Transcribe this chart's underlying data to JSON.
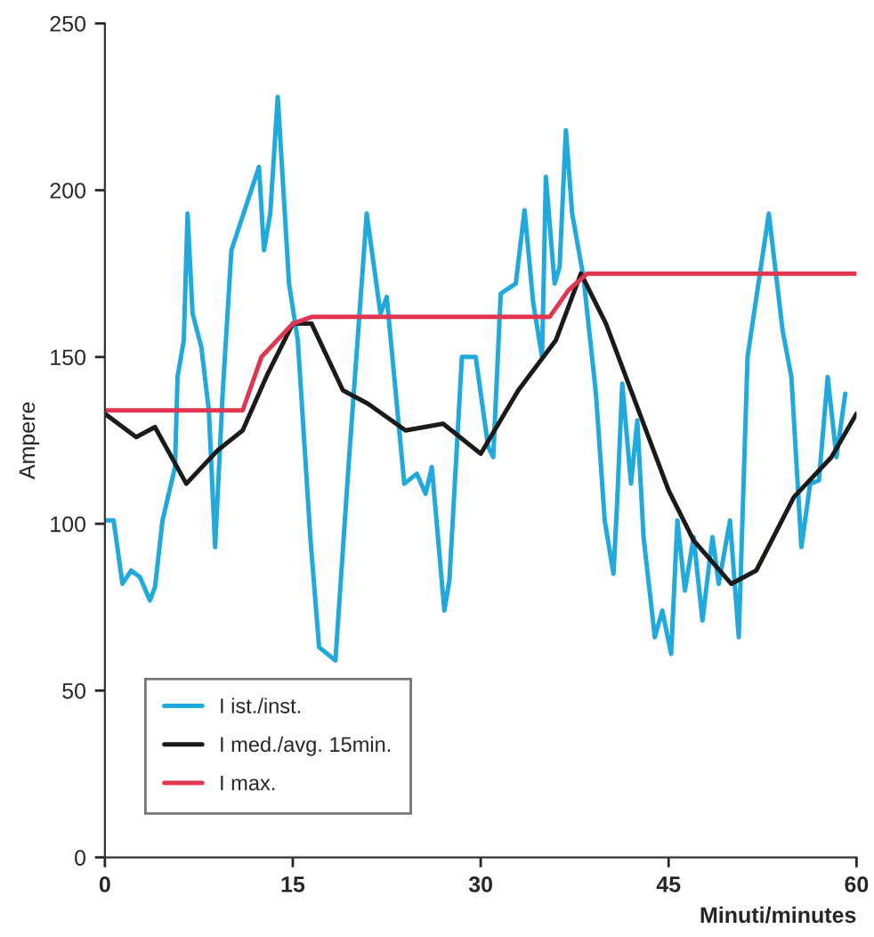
{
  "chart_data": {
    "type": "line",
    "xlabel": "Minuti/minutes",
    "ylabel": "Ampere",
    "xlim": [
      0,
      60
    ],
    "xticks": [
      0,
      15,
      30,
      45,
      60
    ],
    "ylim": [
      0,
      250
    ],
    "yticks": [
      0,
      50,
      100,
      150,
      200,
      250
    ],
    "grid": false,
    "legend": "bottom left",
    "marker": "none",
    "line_style": "solid",
    "series": [
      {
        "name": "I ist./inst.",
        "color": "#1fa9dc",
        "x": [
          0,
          0.7,
          1.4,
          2.1,
          2.8,
          3.6,
          4,
          4.6,
          5.1,
          5.6,
          5.8,
          6.3,
          6.6,
          7,
          7.7,
          8.3,
          8.8,
          9.4,
          10.1,
          12.3,
          12.7,
          13.2,
          13.8,
          14.7,
          15.4,
          16.4,
          17.1,
          18.4,
          19.5,
          20.9,
          22,
          22.5,
          23.5,
          23.9,
          24.9,
          25.6,
          26.1,
          27.1,
          27.5,
          28.5,
          29.6,
          30.6,
          31,
          31.6,
          32.8,
          33.5,
          34.2,
          34.9,
          35.2,
          35.9,
          36.3,
          36.8,
          37.3,
          38.2,
          39.2,
          39.9,
          40.6,
          40.9,
          41.3,
          42,
          42.5,
          43,
          43.9,
          44.5,
          45.2,
          45.7,
          46.3,
          47,
          47.7,
          48.5,
          49,
          49.9,
          50.6,
          51.3,
          53,
          54.1,
          54.8,
          55.6,
          56.3,
          57,
          57.7,
          58.4,
          59.1
        ],
        "values": [
          101,
          101,
          82,
          86,
          84,
          77,
          81,
          101,
          109,
          117,
          144,
          155,
          193,
          163,
          153,
          134,
          93,
          139,
          182,
          207,
          182,
          193,
          228,
          172,
          155,
          96,
          63,
          59,
          120,
          193,
          163,
          168,
          128,
          112,
          115,
          109,
          117,
          74,
          83,
          150,
          150,
          123,
          120,
          169,
          172,
          194,
          166,
          150,
          204,
          172,
          177,
          218,
          193,
          174,
          139,
          101,
          85,
          107,
          142,
          112,
          131,
          96,
          66,
          74,
          61,
          101,
          80,
          96,
          71,
          96,
          82,
          101,
          66,
          150,
          193,
          158,
          144,
          93,
          112,
          113,
          144,
          120,
          139
        ]
      },
      {
        "name": "I med./avg. 15min.",
        "color": "#1a1a1a",
        "x": [
          0,
          2.5,
          4,
          6.5,
          9,
          11,
          13,
          15,
          16.5,
          19,
          21,
          24,
          27,
          30,
          33,
          36,
          38,
          40,
          42,
          45,
          47,
          50,
          52,
          55,
          58,
          60
        ],
        "values": [
          133,
          126,
          129,
          112,
          122,
          128,
          145,
          160,
          160,
          140,
          136,
          128,
          130,
          121,
          140,
          155,
          175,
          160,
          140,
          110,
          95,
          82,
          86,
          108,
          120,
          133
        ]
      },
      {
        "name": "I max.",
        "color": "#e0364f",
        "x": [
          0,
          11,
          12.5,
          15,
          16.5,
          35.5,
          37,
          38.5,
          60
        ],
        "values": [
          134,
          134,
          150,
          160,
          162,
          162,
          170,
          175,
          175
        ]
      }
    ]
  }
}
